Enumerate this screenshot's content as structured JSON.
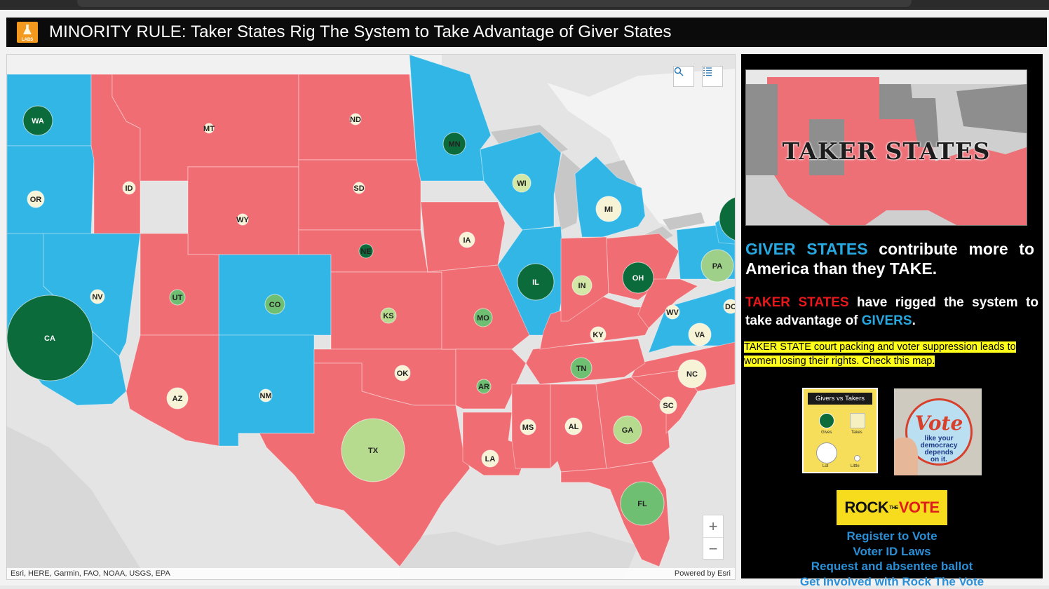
{
  "app": {
    "logo_text": "LABS",
    "title": "MINORITY RULE: Taker States Rig The System to Take Advantage of Giver States"
  },
  "colors": {
    "giver": "#32b6e6",
    "taker": "#ef6d73",
    "circle_dark": "#0b6b3a",
    "circle_mid": "#6fbf73",
    "circle_light": "#b6db8f",
    "circle_pale": "#f6f3d6"
  },
  "map": {
    "search_icon": "search-icon",
    "legend_list_icon": "list-icon",
    "zoom_in": "+",
    "zoom_out": "−",
    "attribution": "Esri, HERE, Garmin, FAO, NOAA, USGS, EPA",
    "powered_by": "Powered by Esri",
    "states": {
      "WA": "WA",
      "OR": "OR",
      "CA": "CA",
      "NV": "NV",
      "ID": "ID",
      "MT": "MT",
      "WY": "WY",
      "UT": "UT",
      "AZ": "AZ",
      "CO": "CO",
      "NM": "NM",
      "ND": "ND",
      "SD": "SD",
      "NE": "NE",
      "KS": "KS",
      "OK": "OK",
      "TX": "TX",
      "MN": "MN",
      "IA": "IA",
      "MO": "MO",
      "AR": "AR",
      "LA": "LA",
      "WI": "WI",
      "IL": "IL",
      "MI": "MI",
      "IN": "IN",
      "OH": "OH",
      "KY": "KY",
      "TN": "TN",
      "MS": "MS",
      "AL": "AL",
      "GA": "GA",
      "FL": "FL",
      "SC": "SC",
      "NC": "NC",
      "VA": "VA",
      "WV": "WV",
      "PA": "PA",
      "DC": "DC"
    }
  },
  "sidebar": {
    "image_caption": "TAKER STATES",
    "giver_states": "GIVER STATES",
    "giver_text": " contribute more to America than they TAKE.",
    "taker_states": "TAKER STATES",
    "taker_text_1": " have rigged the system to take advantage of ",
    "givers": "GIVERS",
    "period": ".",
    "highlight": "TAKER STATE court packing and voter suppression leads to women losing their rights. Check this map.",
    "legend": {
      "title": "Givers vs Takers",
      "gives": "Gives",
      "takes": "Takes",
      "lot": "Lot",
      "little": "Little"
    },
    "vote_sticker": {
      "vote": "Vote",
      "line1": "like your",
      "line2": "democracy",
      "line3": "depends",
      "line4": "on it."
    },
    "rock_the_vote": {
      "rock": "ROCK",
      "the": "THE",
      "vote": "VOTE"
    },
    "links": [
      "Register to Vote",
      "Voter ID Laws",
      "Request and absentee ballot",
      "Get Involved with Rock The Vote"
    ]
  }
}
